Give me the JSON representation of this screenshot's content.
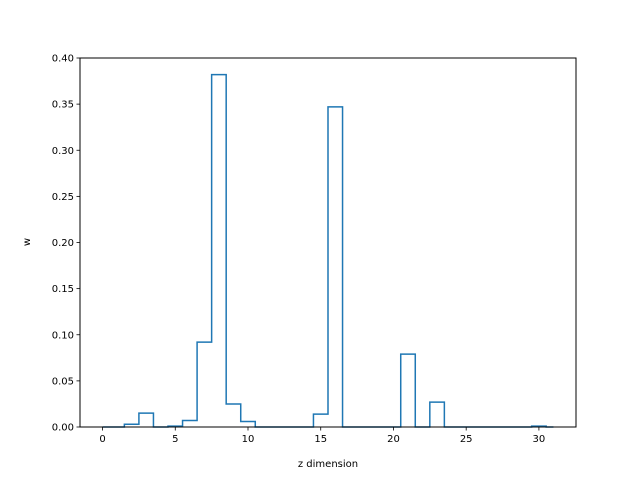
{
  "chart_data": {
    "type": "line",
    "drawstyle": "steps-mid",
    "title": "",
    "xlabel": "z dimension",
    "ylabel": "w",
    "xlim": [
      -1.55,
      32.55
    ],
    "ylim": [
      0,
      0.4
    ],
    "x_ticks": [
      0,
      5,
      10,
      15,
      20,
      25,
      30
    ],
    "y_ticks": [
      0.0,
      0.05,
      0.1,
      0.15,
      0.2,
      0.25,
      0.3,
      0.35,
      0.4
    ],
    "y_tick_labels": [
      "0.00",
      "0.05",
      "0.10",
      "0.15",
      "0.20",
      "0.25",
      "0.30",
      "0.35",
      "0.40"
    ],
    "grid": false,
    "legend": "none",
    "series": [
      {
        "color": "#1f77b4",
        "x": [
          0,
          1,
          2,
          3,
          4,
          5,
          6,
          7,
          8,
          9,
          10,
          11,
          12,
          13,
          14,
          15,
          16,
          17,
          18,
          19,
          20,
          21,
          22,
          23,
          24,
          25,
          26,
          27,
          28,
          29,
          30,
          31
        ],
        "y": [
          0.0,
          0.0,
          0.003,
          0.015,
          0.0,
          0.001,
          0.007,
          0.092,
          0.382,
          0.025,
          0.006,
          0.0,
          0.0,
          0.0,
          0.0,
          0.014,
          0.347,
          0.0,
          0.0,
          0.0,
          0.0,
          0.079,
          0.0,
          0.027,
          0.0,
          0.0,
          0.0,
          0.0,
          0.0,
          0.0,
          0.001,
          0.0
        ]
      }
    ]
  }
}
